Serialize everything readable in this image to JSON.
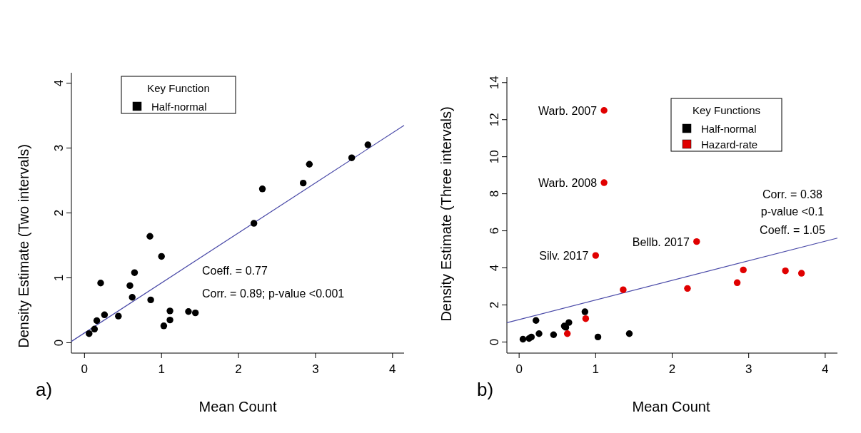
{
  "chart_data": [
    {
      "type": "scatter",
      "xlabel": "Mean Count",
      "ylabel": "Density Estimate (Two intervals)",
      "legend_title": "Key Function",
      "legend": "top left",
      "marker": "circle",
      "xlim": [
        -0.17,
        4.15
      ],
      "ylim": [
        -0.16,
        4.16
      ],
      "xticks": [
        0,
        1,
        2,
        3,
        4
      ],
      "yticks": [
        0,
        1,
        2,
        3,
        4
      ],
      "series": [
        {
          "name": "Half-normal",
          "color": "#000000",
          "x": [
            0.06,
            0.13,
            0.16,
            0.21,
            0.26,
            0.44,
            0.59,
            0.62,
            0.65,
            0.85,
            0.86,
            1.0,
            1.03,
            1.11,
            1.11,
            1.35,
            1.44,
            2.2,
            2.31,
            2.84,
            2.92,
            3.47,
            3.68
          ],
          "values": [
            0.14,
            0.21,
            0.34,
            0.92,
            0.43,
            0.41,
            0.88,
            0.7,
            1.08,
            1.64,
            0.66,
            1.33,
            0.26,
            0.49,
            0.35,
            0.48,
            0.46,
            1.84,
            2.37,
            2.46,
            2.75,
            2.85,
            3.05
          ]
        },
        {
          "type": "line",
          "marker": "none",
          "color": "#4a4aa8",
          "x": [
            -0.17,
            4.15
          ],
          "values": [
            0.02,
            3.35
          ]
        }
      ],
      "annotations": [
        "Coeff. = 0.77",
        "Corr. = 0.89;   p-value <0.001",
        "a)"
      ]
    },
    {
      "type": "scatter",
      "xlabel": "Mean Count",
      "ylabel": "Density Estimate (Three intervals)",
      "legend_title": "Key Functions",
      "legend": "top right",
      "marker": "circle",
      "xlim": [
        -0.16,
        4.16
      ],
      "ylim": [
        -0.6,
        14.3
      ],
      "xticks": [
        0,
        1,
        2,
        3,
        4
      ],
      "yticks": [
        0,
        2,
        4,
        6,
        8,
        10,
        12,
        14
      ],
      "series": [
        {
          "name": "Half-normal",
          "color": "#000000",
          "x": [
            0.05,
            0.13,
            0.16,
            0.22,
            0.26,
            0.45,
            0.59,
            0.61,
            0.65,
            0.86,
            1.03,
            1.44
          ],
          "values": [
            0.15,
            0.19,
            0.27,
            1.16,
            0.45,
            0.39,
            0.86,
            0.79,
            1.05,
            1.63,
            0.27,
            0.45
          ]
        },
        {
          "name": "Hazard-rate",
          "color": "#e00000",
          "x": [
            0.63,
            0.87,
            1.0,
            1.11,
            1.11,
            1.36,
            2.2,
            2.32,
            2.85,
            2.93,
            3.48,
            3.69
          ],
          "values": [
            0.45,
            1.26,
            4.67,
            8.6,
            12.5,
            2.82,
            2.89,
            5.42,
            3.2,
            3.89,
            3.84,
            3.71
          ]
        },
        {
          "type": "line",
          "marker": "none",
          "color": "#4a4aa8",
          "x": [
            -0.16,
            4.16
          ],
          "values": [
            1.04,
            5.61
          ]
        }
      ],
      "annotations": [
        {
          "text": "Warb. 2007",
          "x": 1.11,
          "y": 12.5
        },
        {
          "text": "Warb. 2008",
          "x": 1.11,
          "y": 8.6
        },
        {
          "text": "Silv. 2017",
          "x": 1.0,
          "y": 4.67
        },
        {
          "text": "Bellb. 2017",
          "x": 2.32,
          "y": 5.42
        },
        "Corr. = 0.38",
        "p-value <0.1",
        "Coeff. = 1.05",
        "b)"
      ]
    }
  ]
}
